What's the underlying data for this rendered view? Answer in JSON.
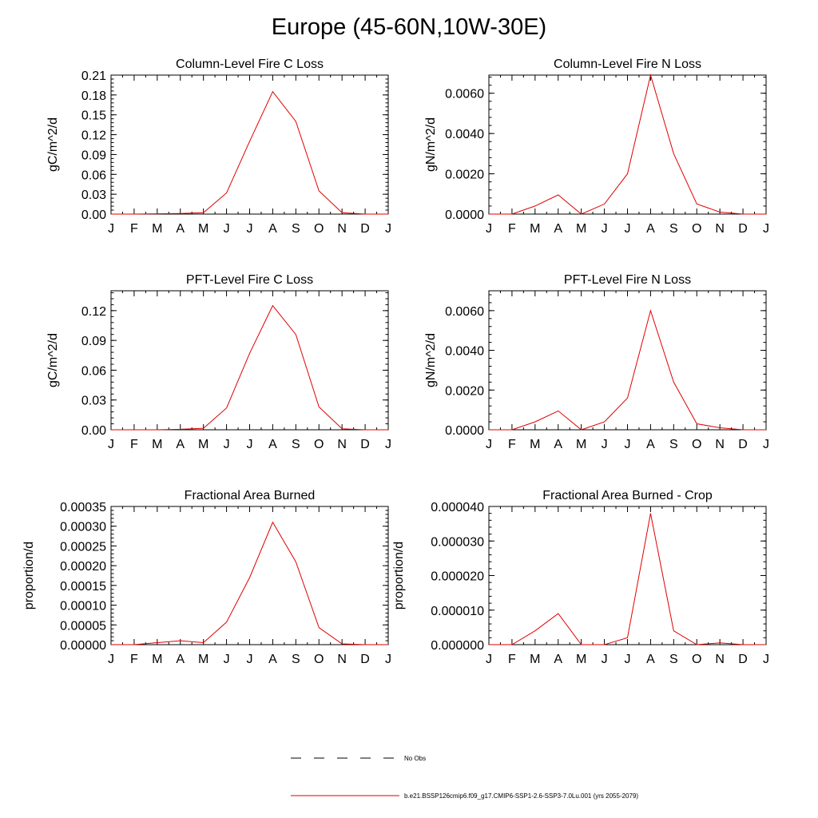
{
  "page": {
    "title": "Europe (45-60N,10W-30E)"
  },
  "chart_data": [
    {
      "type": "line",
      "title": "Column-Level Fire C Loss",
      "ylabel": "gC/m^2/d",
      "categories": [
        "J",
        "F",
        "M",
        "A",
        "M",
        "J",
        "J",
        "A",
        "S",
        "O",
        "N",
        "D",
        "J"
      ],
      "ylim": [
        0,
        0.21
      ],
      "yticks": [
        0.0,
        0.03,
        0.06,
        0.09,
        0.12,
        0.15,
        0.18,
        0.21
      ],
      "ytick_labels": [
        "0.00",
        "0.03",
        "0.06",
        "0.09",
        "0.12",
        "0.15",
        "0.18",
        "0.21"
      ],
      "series": [
        {
          "values": [
            0.0,
            0.0,
            0.0005,
            0.001,
            0.002,
            0.032,
            0.11,
            0.185,
            0.14,
            0.035,
            0.002,
            0.0,
            0.0
          ]
        }
      ]
    },
    {
      "type": "line",
      "title": "Column-Level Fire N Loss",
      "ylabel": "gN/m^2/d",
      "categories": [
        "J",
        "F",
        "M",
        "A",
        "M",
        "J",
        "J",
        "A",
        "S",
        "O",
        "N",
        "D",
        "J"
      ],
      "ylim": [
        0,
        0.0069
      ],
      "yticks": [
        0.0,
        0.002,
        0.004,
        0.006
      ],
      "ytick_labels": [
        "0.0000",
        "0.0020",
        "0.0040",
        "0.0060"
      ],
      "series": [
        {
          "values": [
            0.0,
            0.0,
            0.0004,
            0.00095,
            0.0,
            0.0005,
            0.002,
            0.0069,
            0.003,
            0.0005,
            0.0001,
            0.0,
            0.0
          ]
        }
      ]
    },
    {
      "type": "line",
      "title": "PFT-Level Fire C Loss",
      "ylabel": "gC/m^2/d",
      "categories": [
        "J",
        "F",
        "M",
        "A",
        "M",
        "J",
        "J",
        "A",
        "S",
        "O",
        "N",
        "D",
        "J"
      ],
      "ylim": [
        0,
        0.14
      ],
      "yticks": [
        0.0,
        0.03,
        0.06,
        0.09,
        0.12
      ],
      "ytick_labels": [
        "0.00",
        "0.03",
        "0.06",
        "0.09",
        "0.12"
      ],
      "series": [
        {
          "values": [
            0.0,
            0.0,
            0.0,
            0.0005,
            0.0015,
            0.022,
            0.077,
            0.125,
            0.096,
            0.023,
            0.001,
            0.0,
            0.0
          ]
        }
      ]
    },
    {
      "type": "line",
      "title": "PFT-Level Fire N Loss",
      "ylabel": "gN/m^2/d",
      "categories": [
        "J",
        "F",
        "M",
        "A",
        "M",
        "J",
        "J",
        "A",
        "S",
        "O",
        "N",
        "D",
        "J"
      ],
      "ylim": [
        0,
        0.007
      ],
      "yticks": [
        0.0,
        0.002,
        0.004,
        0.006
      ],
      "ytick_labels": [
        "0.0000",
        "0.0020",
        "0.0040",
        "0.0060"
      ],
      "series": [
        {
          "values": [
            0.0,
            0.0,
            0.0004,
            0.00095,
            0.0,
            0.0004,
            0.0016,
            0.006,
            0.0024,
            0.0003,
            0.0001,
            0.0,
            0.0
          ]
        }
      ]
    },
    {
      "type": "line",
      "title": "Fractional Area Burned",
      "ylabel": "proportion/d",
      "categories": [
        "J",
        "F",
        "M",
        "A",
        "M",
        "J",
        "J",
        "A",
        "S",
        "O",
        "N",
        "D",
        "J"
      ],
      "ylim": [
        0,
        0.00035
      ],
      "yticks": [
        0.0,
        5e-05,
        0.0001,
        0.00015,
        0.0002,
        0.00025,
        0.0003,
        0.00035
      ],
      "ytick_labels": [
        "0.00000",
        "0.00005",
        "0.00010",
        "0.00015",
        "0.00020",
        "0.00025",
        "0.00030",
        "0.00035"
      ],
      "series": [
        {
          "values": [
            0.0,
            0.0,
            5e-06,
            1e-05,
            5e-06,
            5.7e-05,
            0.00017,
            0.00031,
            0.00021,
            4.3e-05,
            2e-06,
            0.0,
            0.0
          ]
        }
      ]
    },
    {
      "type": "line",
      "title": "Fractional Area Burned - Crop",
      "ylabel": "proportion/d",
      "categories": [
        "J",
        "F",
        "M",
        "A",
        "M",
        "J",
        "J",
        "A",
        "S",
        "O",
        "N",
        "D",
        "J"
      ],
      "ylim": [
        0,
        4e-05
      ],
      "yticks": [
        0.0,
        1e-05,
        2e-05,
        3e-05,
        4e-05
      ],
      "ytick_labels": [
        "0.000000",
        "0.000010",
        "0.000020",
        "0.000030",
        "0.000040"
      ],
      "series": [
        {
          "values": [
            0.0,
            0.0,
            4e-06,
            9e-06,
            0.0,
            0.0,
            2e-06,
            3.8e-05,
            4e-06,
            0.0,
            5e-07,
            0.0,
            0.0
          ]
        }
      ]
    }
  ],
  "legend": {
    "items": [
      {
        "label": "No Obs",
        "color": "#000000",
        "dashed": true
      },
      {
        "label": "b.e21.BSSP126cmip6.f09_g17.CMIP6-SSP1-2.6-SSP3-7.0Lu.001 (yrs 2055-2079)",
        "color": "#e00000",
        "dashed": false
      }
    ]
  }
}
